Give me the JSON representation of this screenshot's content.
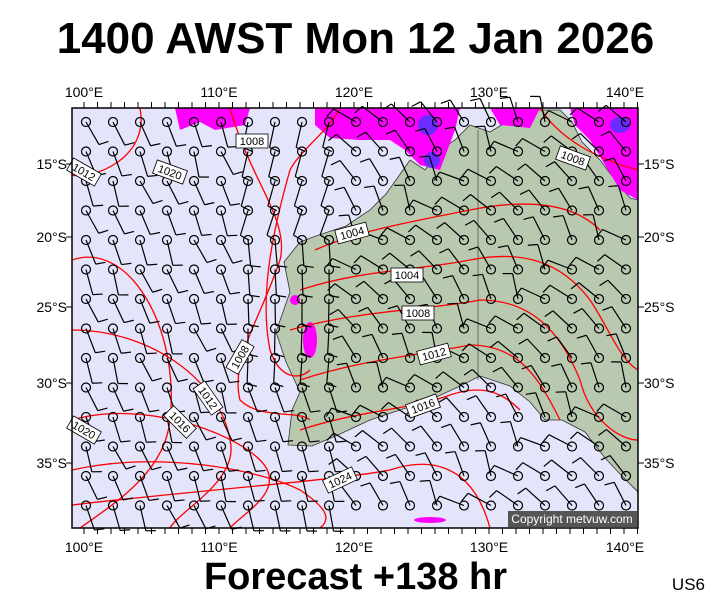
{
  "title": "1400 AWST Mon 12 Jan 2026",
  "footer": "Forecast +138 hr",
  "model_code": "US6",
  "copyright": "Copyright metvuw.com",
  "lon_labels": [
    "100°E",
    "110°E",
    "120°E",
    "130°E",
    "140°E"
  ],
  "lat_labels": [
    "15°S",
    "20°S",
    "25°S",
    "30°S",
    "35°S"
  ],
  "isobar_labels": [
    "1008",
    "1008",
    "1004",
    "1004",
    "1008",
    "1012",
    "1016",
    "1020",
    "1024",
    "1012",
    "1016",
    "1020",
    "1008",
    "1012"
  ],
  "colors": {
    "ocean": "#e4e4fa",
    "land": "#b9c9b0",
    "isobar": "#ff0000",
    "rain": "#ff00ff",
    "rain_heavy": "#6a2cff",
    "barb": "#000000"
  }
}
